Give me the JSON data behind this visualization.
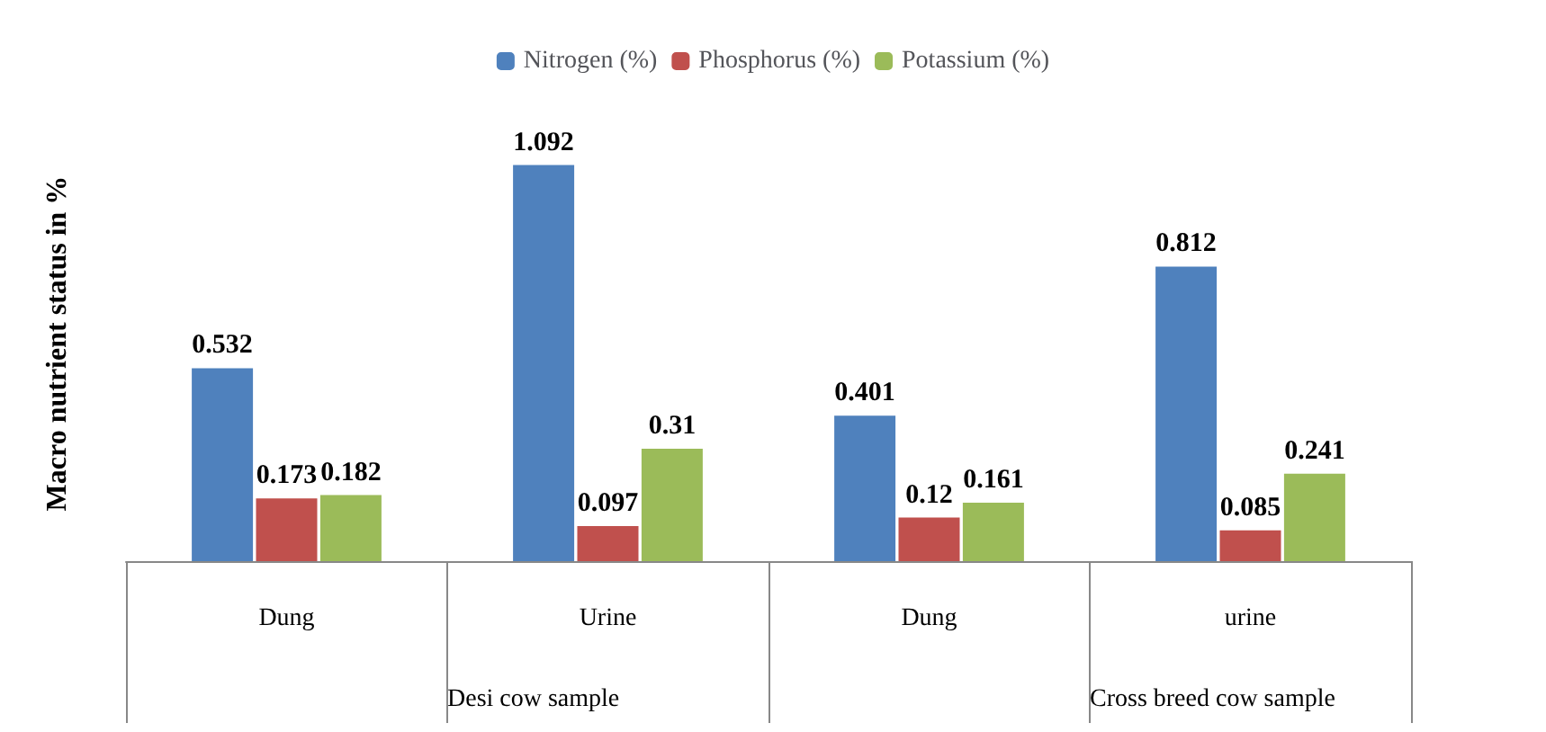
{
  "chart_data": {
    "type": "bar",
    "ylabel": "Macro nutrient status in %",
    "categories": [
      "Dung",
      "Urine",
      "Dung",
      "urine"
    ],
    "series": [
      {
        "name": "Nitrogen (%)",
        "color": "#4f81bd",
        "values": [
          0.532,
          1.092,
          0.401,
          0.812
        ]
      },
      {
        "name": "Phosphorus (%)",
        "color": "#c0504d",
        "values": [
          0.173,
          0.097,
          0.12,
          0.085
        ]
      },
      {
        "name": "Potassium (%)",
        "color": "#9bbb59",
        "values": [
          0.182,
          0.31,
          0.161,
          0.241
        ]
      }
    ],
    "annotations": [
      "Desi cow sample",
      "Cross breed cow sample"
    ],
    "data_labels": true,
    "legend": "top",
    "grid": false
  }
}
